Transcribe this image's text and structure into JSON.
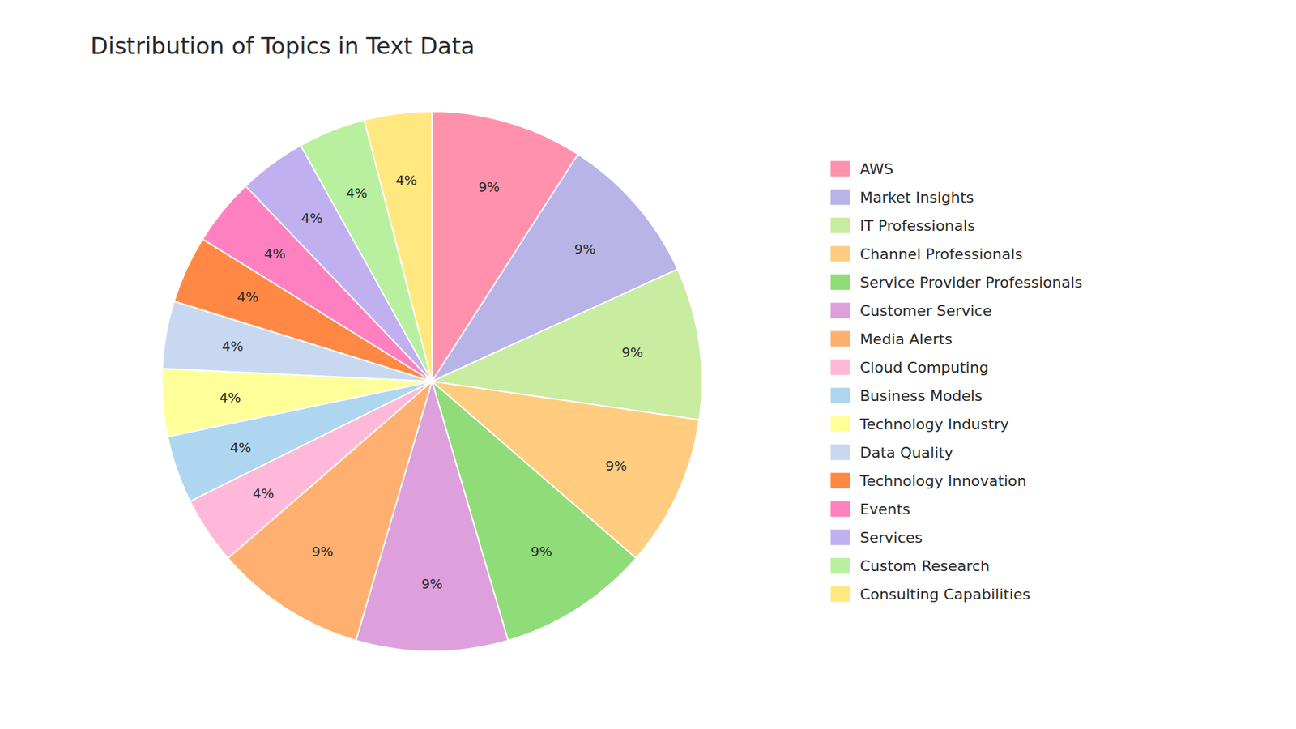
{
  "chart_data": {
    "type": "pie",
    "title": "Distribution of Topics in Text Data",
    "categories": [
      "AWS",
      "Market Insights",
      "IT Professionals",
      "Channel Professionals",
      "Service Provider Professionals",
      "Customer Service",
      "Media Alerts",
      "Cloud Computing",
      "Business Models",
      "Technology Industry",
      "Data Quality",
      "Technology Innovation",
      "Events",
      "Services",
      "Custom Research",
      "Consulting Capabilities"
    ],
    "values": [
      9,
      9,
      9,
      9,
      9,
      9,
      9,
      4,
      4,
      4,
      4,
      4,
      4,
      4,
      4,
      4
    ],
    "value_labels": [
      "9%",
      "9%",
      "9%",
      "9%",
      "9%",
      "9%",
      "9%",
      "4%",
      "4%",
      "4%",
      "4%",
      "4%",
      "4%",
      "4%",
      "4%",
      "4%"
    ],
    "colors": [
      "#FF91AC",
      "#B8B4E8",
      "#C8ECA0",
      "#FFCC80",
      "#90DC78",
      "#DDA0DD",
      "#FFB070",
      "#FFB8D8",
      "#AED6F1",
      "#FFFF99",
      "#C8D8F0",
      "#FF8844",
      "#FF80C0",
      "#C0B0F0",
      "#B8F0A0",
      "#FFE880"
    ],
    "data_labels": true,
    "legend": "right"
  }
}
